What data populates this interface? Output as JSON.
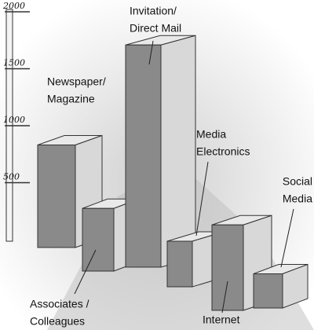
{
  "chart_data": {
    "type": "bar3d",
    "categories": [
      [
        "Newspaper/",
        "Magazine"
      ],
      [
        "Associates /",
        "Colleagues"
      ],
      [
        "Invitation/",
        "Direct Mail"
      ],
      [
        "Media",
        "Electronics"
      ],
      [
        "Internet"
      ],
      [
        "Social",
        "Media"
      ]
    ],
    "values": [
      900,
      550,
      1950,
      400,
      750,
      300
    ],
    "ylim": [
      0,
      2000
    ],
    "yticks": [
      500,
      1000,
      1500,
      2000
    ]
  }
}
